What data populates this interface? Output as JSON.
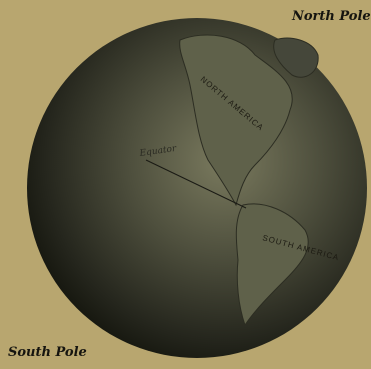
{
  "labels": {
    "north_pole": "North Pole",
    "south_pole": "South Pole",
    "equator": "Equator",
    "north_america": "NORTH AMERICA",
    "south_america": "SOUTH AMERICA"
  }
}
